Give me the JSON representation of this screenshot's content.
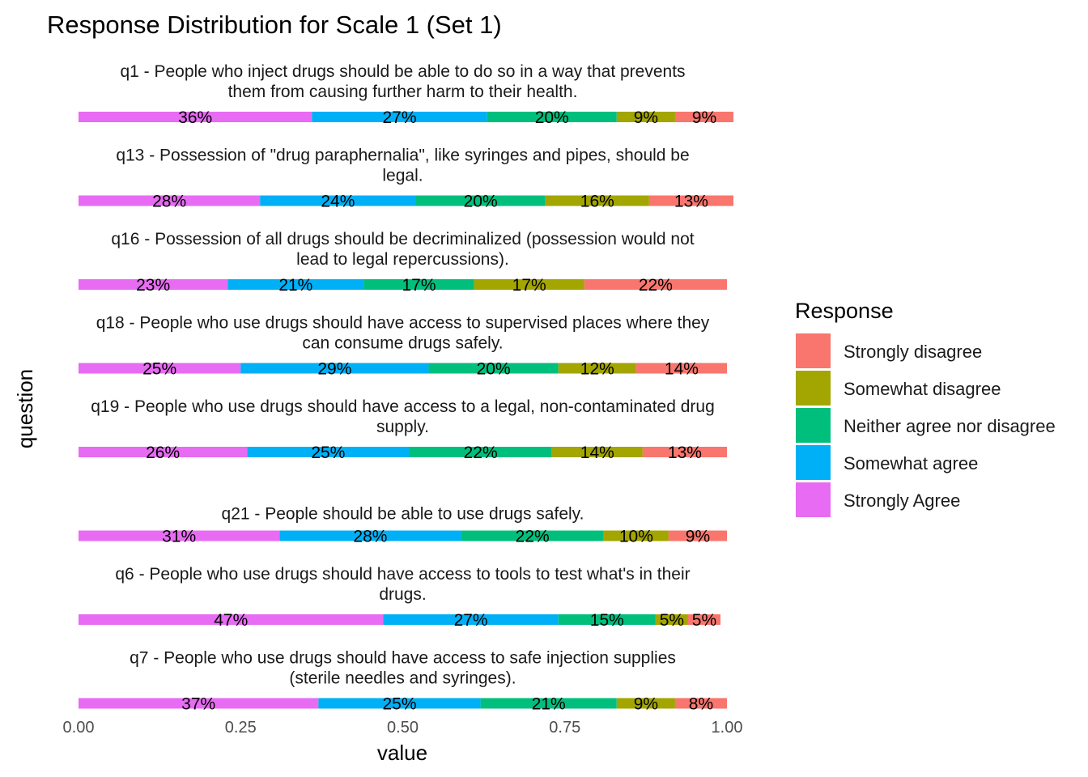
{
  "chart_data": {
    "type": "bar",
    "orientation": "horizontal-stacked",
    "title": "Response Distribution for Scale 1 (Set 1)",
    "xlabel": "value",
    "ylabel": "question",
    "xlim": [
      0,
      1
    ],
    "x_ticks": [
      "0.00",
      "0.25",
      "0.50",
      "0.75",
      "1.00"
    ],
    "grid": false,
    "legend": {
      "title": "Response",
      "placement": "right",
      "items": [
        {
          "name": "Strongly disagree",
          "color": "#F8766D"
        },
        {
          "name": "Somewhat disagree",
          "color": "#A3A500"
        },
        {
          "name": "Neither agree nor disagree",
          "color": "#00BF7D"
        },
        {
          "name": "Somewhat agree",
          "color": "#00B0F6"
        },
        {
          "name": "Strongly Agree",
          "color": "#E76BF3"
        }
      ]
    },
    "stack_order": [
      "Strongly Agree",
      "Somewhat agree",
      "Neither agree nor disagree",
      "Somewhat disagree",
      "Strongly disagree"
    ],
    "questions": [
      {
        "label": [
          "q1 - People who inject drugs should be able to do so in a way that prevents",
          "them from causing further harm to their health."
        ],
        "values": [
          0.36,
          0.27,
          0.2,
          0.09,
          0.09
        ],
        "labels": [
          "36%",
          "27%",
          "20%",
          "9%",
          "9%"
        ]
      },
      {
        "label": [
          "q13 - Possession of \"drug paraphernalia\", like syringes and pipes, should be",
          "legal."
        ],
        "values": [
          0.28,
          0.24,
          0.2,
          0.16,
          0.13
        ],
        "labels": [
          "28%",
          "24%",
          "20%",
          "16%",
          "13%"
        ]
      },
      {
        "label": [
          "q16 - Possession of all drugs should be decriminalized (possession would not",
          "lead to legal repercussions)."
        ],
        "values": [
          0.23,
          0.21,
          0.17,
          0.17,
          0.22
        ],
        "labels": [
          "23%",
          "21%",
          "17%",
          "17%",
          "22%"
        ]
      },
      {
        "label": [
          "q18 - People who use drugs should have access to supervised places where they",
          "can consume drugs safely."
        ],
        "values": [
          0.25,
          0.29,
          0.2,
          0.12,
          0.14
        ],
        "labels": [
          "25%",
          "29%",
          "20%",
          "12%",
          "14%"
        ]
      },
      {
        "label": [
          "q19 - People who use drugs should have access to a legal, non-contaminated drug",
          "supply."
        ],
        "values": [
          0.26,
          0.25,
          0.22,
          0.14,
          0.13
        ],
        "labels": [
          "26%",
          "25%",
          "22%",
          "14%",
          "13%"
        ]
      },
      {
        "label": [
          "q21 - People should be able to use drugs safely."
        ],
        "values": [
          0.31,
          0.28,
          0.22,
          0.1,
          0.09
        ],
        "labels": [
          "31%",
          "28%",
          "22%",
          "10%",
          "9%"
        ]
      },
      {
        "label": [
          "q6 - People who use drugs should have access to tools to test what's in their",
          "drugs."
        ],
        "values": [
          0.47,
          0.27,
          0.15,
          0.05,
          0.05
        ],
        "labels": [
          "47%",
          "27%",
          "15%",
          "5%",
          "5%"
        ]
      },
      {
        "label": [
          "q7 - People who use drugs should have access to safe injection supplies",
          "(sterile needles and syringes)."
        ],
        "values": [
          0.37,
          0.25,
          0.21,
          0.09,
          0.08
        ],
        "labels": [
          "37%",
          "25%",
          "21%",
          "9%",
          "8%"
        ]
      }
    ]
  }
}
